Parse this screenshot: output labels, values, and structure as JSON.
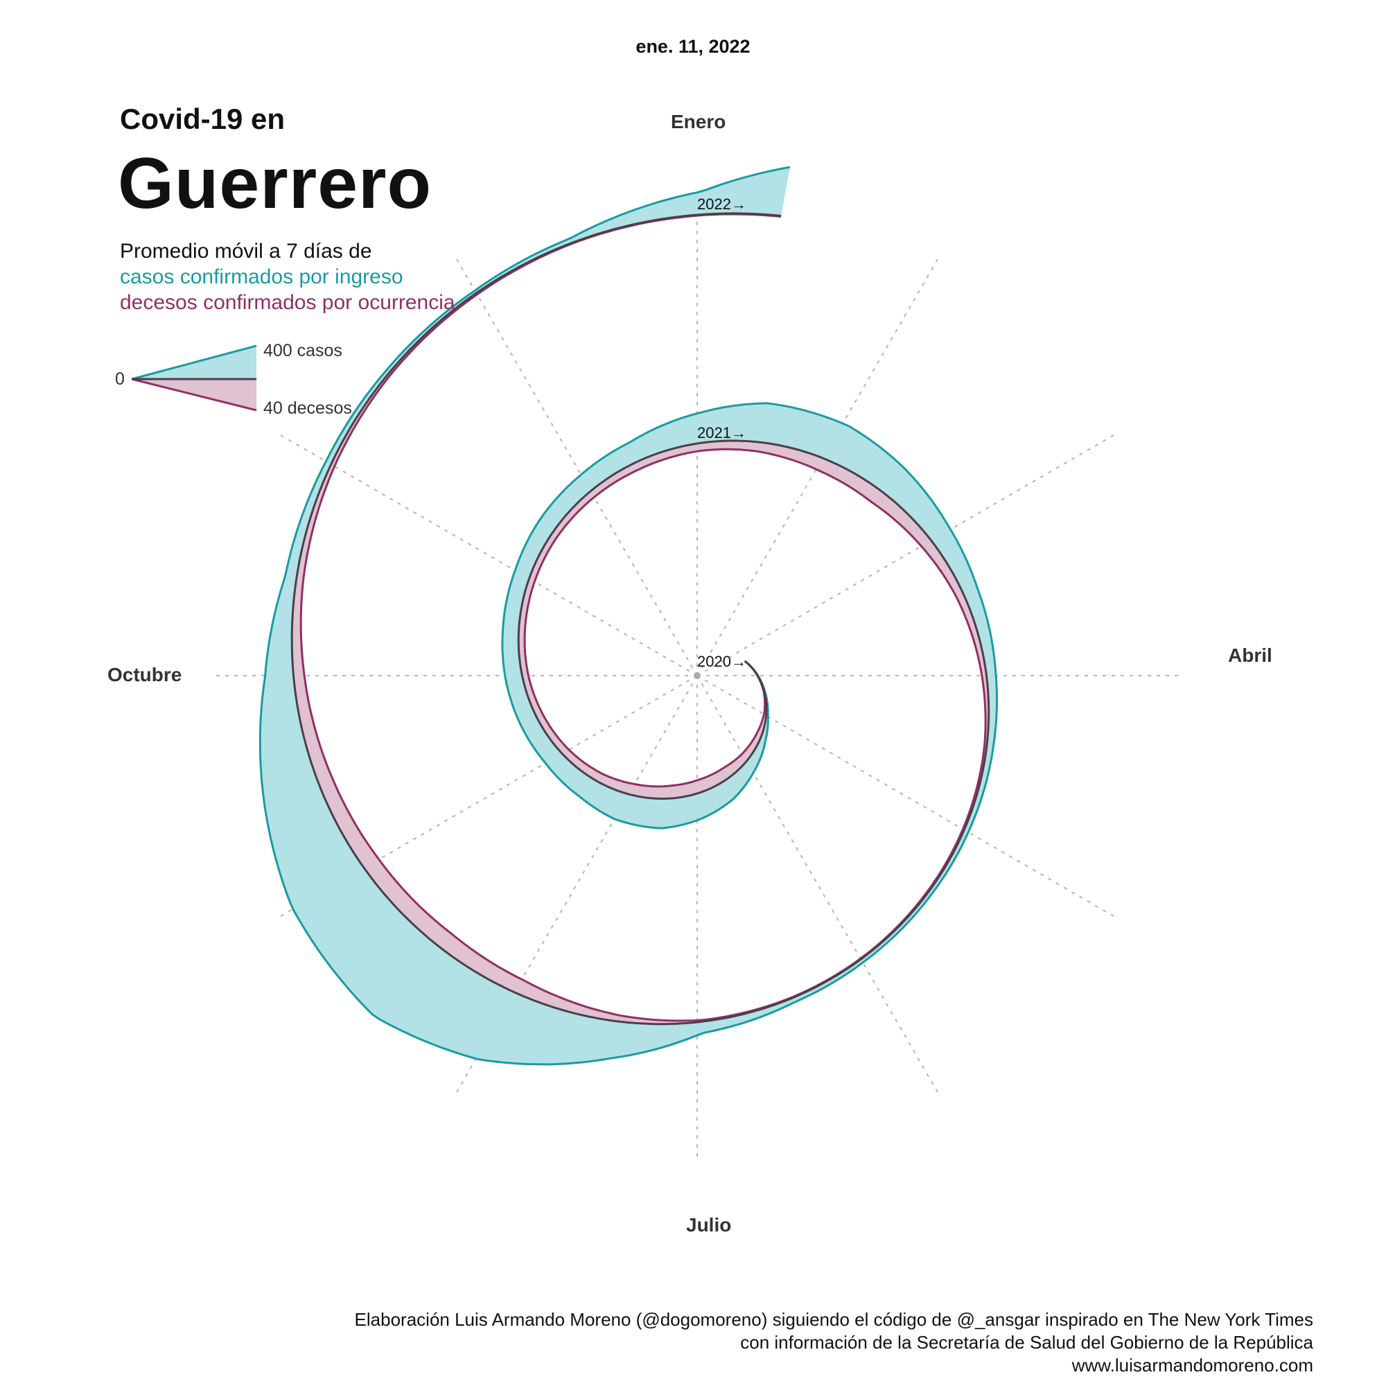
{
  "date": "ene. 11, 2022",
  "title_small": "Covid-19 en",
  "title_big": "Guerrero",
  "subtitle": {
    "line1": "Promedio móvil a 7 días de",
    "cases": "casos confirmados por ingreso",
    "deaths": "decesos confirmados por ocurrencia"
  },
  "legend": {
    "zero": "0",
    "cases_scale": "400 casos",
    "deaths_scale": "40 decesos"
  },
  "months": [
    "Enero",
    "Abril",
    "Julio",
    "Octubre"
  ],
  "credits": {
    "line1": "Elaboración Luis Armando Moreno (@dogomoreno) siguiendo el código de @_ansgar inspirado en The New York Times",
    "line2": "con información de la Secretaría de Salud del Gobierno de la República",
    "line3": "www.luisarmandomoreno.com"
  },
  "colors": {
    "cases": "#1a9ba3",
    "cases_fill": "#b2e2e5",
    "deaths": "#912f63",
    "deaths_fill": "#e0c2d1",
    "spiral": "#4a3f4a"
  },
  "chart_data": {
    "type": "area",
    "layout": "polar spiral, one turn per year, clockwise from Enero at top",
    "year_labels": [
      "2020→",
      "2021→",
      "2022→"
    ],
    "units": {
      "cases": "casos (promedio móvil 7 días)",
      "deaths": "decesos (promedio móvil 7 días)"
    },
    "scale": {
      "cases": 400,
      "deaths": 40
    },
    "start_date": "2020-03-15",
    "end_date": "2022-01-11",
    "cases": [
      {
        "date": "2020-03-15",
        "value": 0
      },
      {
        "date": "2020-04-01",
        "value": 1
      },
      {
        "date": "2020-04-15",
        "value": 3
      },
      {
        "date": "2020-05-01",
        "value": 10
      },
      {
        "date": "2020-05-15",
        "value": 30
      },
      {
        "date": "2020-06-01",
        "value": 70
      },
      {
        "date": "2020-06-15",
        "value": 110
      },
      {
        "date": "2020-07-01",
        "value": 140
      },
      {
        "date": "2020-07-15",
        "value": 160
      },
      {
        "date": "2020-08-01",
        "value": 150
      },
      {
        "date": "2020-08-15",
        "value": 120
      },
      {
        "date": "2020-09-01",
        "value": 100
      },
      {
        "date": "2020-09-15",
        "value": 95
      },
      {
        "date": "2020-10-01",
        "value": 90
      },
      {
        "date": "2020-10-15",
        "value": 85
      },
      {
        "date": "2020-11-01",
        "value": 85
      },
      {
        "date": "2020-11-15",
        "value": 95
      },
      {
        "date": "2020-12-01",
        "value": 100
      },
      {
        "date": "2020-12-15",
        "value": 110
      },
      {
        "date": "2021-01-01",
        "value": 160
      },
      {
        "date": "2021-01-15",
        "value": 210
      },
      {
        "date": "2021-02-01",
        "value": 210
      },
      {
        "date": "2021-02-15",
        "value": 170
      },
      {
        "date": "2021-03-01",
        "value": 120
      },
      {
        "date": "2021-03-15",
        "value": 80
      },
      {
        "date": "2021-04-01",
        "value": 50
      },
      {
        "date": "2021-04-15",
        "value": 35
      },
      {
        "date": "2021-05-01",
        "value": 25
      },
      {
        "date": "2021-05-15",
        "value": 20
      },
      {
        "date": "2021-06-01",
        "value": 20
      },
      {
        "date": "2021-06-15",
        "value": 25
      },
      {
        "date": "2021-07-01",
        "value": 60
      },
      {
        "date": "2021-07-15",
        "value": 200
      },
      {
        "date": "2021-08-01",
        "value": 400
      },
      {
        "date": "2021-08-15",
        "value": 500
      },
      {
        "date": "2021-09-01",
        "value": 430
      },
      {
        "date": "2021-09-15",
        "value": 300
      },
      {
        "date": "2021-10-01",
        "value": 150
      },
      {
        "date": "2021-10-15",
        "value": 60
      },
      {
        "date": "2021-11-01",
        "value": 30
      },
      {
        "date": "2021-11-15",
        "value": 20
      },
      {
        "date": "2021-12-01",
        "value": 15
      },
      {
        "date": "2021-12-15",
        "value": 25
      },
      {
        "date": "2022-01-01",
        "value": 120
      },
      {
        "date": "2022-01-11",
        "value": 260
      }
    ],
    "deaths": [
      {
        "date": "2020-03-15",
        "value": 0
      },
      {
        "date": "2020-04-01",
        "value": 0.5
      },
      {
        "date": "2020-04-15",
        "value": 1
      },
      {
        "date": "2020-05-01",
        "value": 3
      },
      {
        "date": "2020-05-15",
        "value": 7
      },
      {
        "date": "2020-06-01",
        "value": 11
      },
      {
        "date": "2020-06-15",
        "value": 15
      },
      {
        "date": "2020-07-01",
        "value": 17
      },
      {
        "date": "2020-07-15",
        "value": 17
      },
      {
        "date": "2020-08-01",
        "value": 15
      },
      {
        "date": "2020-08-15",
        "value": 12
      },
      {
        "date": "2020-09-01",
        "value": 10
      },
      {
        "date": "2020-09-15",
        "value": 9
      },
      {
        "date": "2020-10-01",
        "value": 8
      },
      {
        "date": "2020-10-15",
        "value": 8
      },
      {
        "date": "2020-11-01",
        "value": 8
      },
      {
        "date": "2020-11-15",
        "value": 8
      },
      {
        "date": "2020-12-01",
        "value": 9
      },
      {
        "date": "2020-12-15",
        "value": 10
      },
      {
        "date": "2021-01-01",
        "value": 10
      },
      {
        "date": "2021-01-15",
        "value": 12
      },
      {
        "date": "2021-02-01",
        "value": 17
      },
      {
        "date": "2021-02-15",
        "value": 19
      },
      {
        "date": "2021-03-01",
        "value": 15
      },
      {
        "date": "2021-03-15",
        "value": 10
      },
      {
        "date": "2021-04-01",
        "value": 6
      },
      {
        "date": "2021-04-15",
        "value": 3
      },
      {
        "date": "2021-05-01",
        "value": 2
      },
      {
        "date": "2021-05-15",
        "value": 1.5
      },
      {
        "date": "2021-06-01",
        "value": 1
      },
      {
        "date": "2021-06-15",
        "value": 1
      },
      {
        "date": "2021-07-01",
        "value": 2
      },
      {
        "date": "2021-07-15",
        "value": 8
      },
      {
        "date": "2021-08-01",
        "value": 19
      },
      {
        "date": "2021-08-15",
        "value": 23
      },
      {
        "date": "2021-09-01",
        "value": 22
      },
      {
        "date": "2021-09-15",
        "value": 19
      },
      {
        "date": "2021-10-01",
        "value": 14
      },
      {
        "date": "2021-10-15",
        "value": 9
      },
      {
        "date": "2021-11-01",
        "value": 5
      },
      {
        "date": "2021-11-15",
        "value": 3
      },
      {
        "date": "2021-12-01",
        "value": 2
      },
      {
        "date": "2021-12-15",
        "value": 1
      },
      {
        "date": "2022-01-01",
        "value": 1
      },
      {
        "date": "2022-01-11",
        "value": 1
      }
    ]
  }
}
